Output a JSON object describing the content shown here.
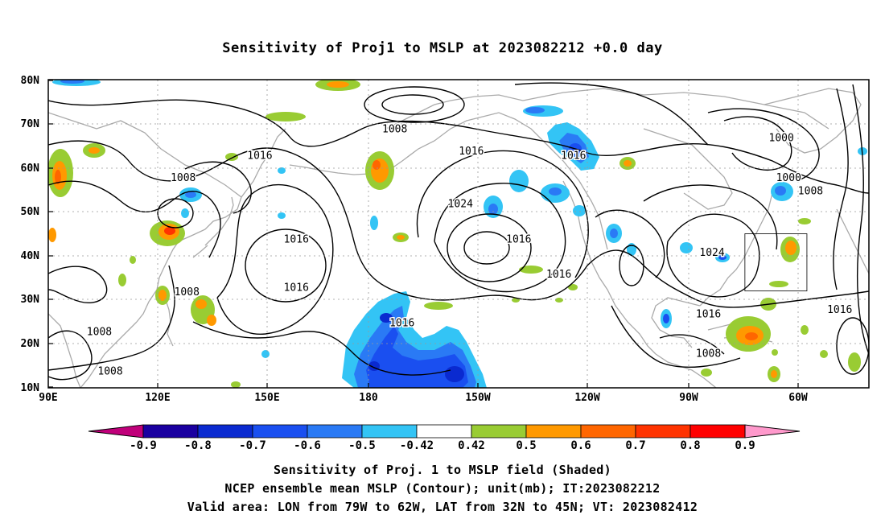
{
  "title": "Sensitivity of Proj1 to MSLP at 2023082212 +0.0 day",
  "map": {
    "lat_ticks": [
      "80N",
      "70N",
      "60N",
      "50N",
      "40N",
      "30N",
      "20N",
      "10N"
    ],
    "lon_ticks": [
      "90E",
      "120E",
      "150E",
      "180",
      "150W",
      "120W",
      "90W",
      "60W"
    ],
    "contour_labels": [
      {
        "text": "1008",
        "lon": 185,
        "lat": 68
      },
      {
        "text": "1016",
        "lon": 206,
        "lat": 63
      },
      {
        "text": "1016",
        "lon": 234,
        "lat": 62
      },
      {
        "text": "1000",
        "lon": 291,
        "lat": 66
      },
      {
        "text": "1016",
        "lon": 148,
        "lat": 62
      },
      {
        "text": "1000",
        "lon": 293,
        "lat": 57
      },
      {
        "text": "1008",
        "lon": 299,
        "lat": 54
      },
      {
        "text": "1008",
        "lon": 127,
        "lat": 57
      },
      {
        "text": "1024",
        "lon": 203,
        "lat": 51
      },
      {
        "text": "1016",
        "lon": 219,
        "lat": 43
      },
      {
        "text": "1016",
        "lon": 158,
        "lat": 43
      },
      {
        "text": "1024",
        "lon": 272,
        "lat": 40
      },
      {
        "text": "1016",
        "lon": 230,
        "lat": 35
      },
      {
        "text": "1016",
        "lon": 158,
        "lat": 32
      },
      {
        "text": "1008",
        "lon": 128,
        "lat": 31
      },
      {
        "text": "1016",
        "lon": 187,
        "lat": 24
      },
      {
        "text": "1016",
        "lon": 271,
        "lat": 26
      },
      {
        "text": "1016",
        "lon": 307,
        "lat": 27
      },
      {
        "text": "1008",
        "lon": 104,
        "lat": 22
      },
      {
        "text": "1008",
        "lon": 271,
        "lat": 17
      },
      {
        "text": "1008",
        "lon": 107,
        "lat": 13
      }
    ],
    "valid_box": {
      "lon_min": 281,
      "lon_max": 298,
      "lat_min": 32,
      "lat_max": 45
    }
  },
  "colorbar": {
    "labels": [
      "-0.9",
      "-0.8",
      "-0.7",
      "-0.6",
      "-0.5",
      "-0.42",
      "0.42",
      "0.5",
      "0.6",
      "0.7",
      "0.8",
      "0.9"
    ],
    "colors": [
      "#1a00a0",
      "#0a2ad0",
      "#1a4ff0",
      "#2a7af5",
      "#33c4f5",
      "#ffffff",
      "#99cc33",
      "#ff9900",
      "#ff6600",
      "#ff3300",
      "#ff0000"
    ],
    "under_color": "#c0007a",
    "over_color": "#ff99cc"
  },
  "captions": [
    "Sensitivity of Proj. 1 to MSLP field (Shaded)",
    "NCEP ensemble mean MSLP (Contour); unit(mb); IT:2023082212",
    "Valid area: LON from 79W to 62W, LAT from 32N to 45N; VT: 2023082412"
  ]
}
